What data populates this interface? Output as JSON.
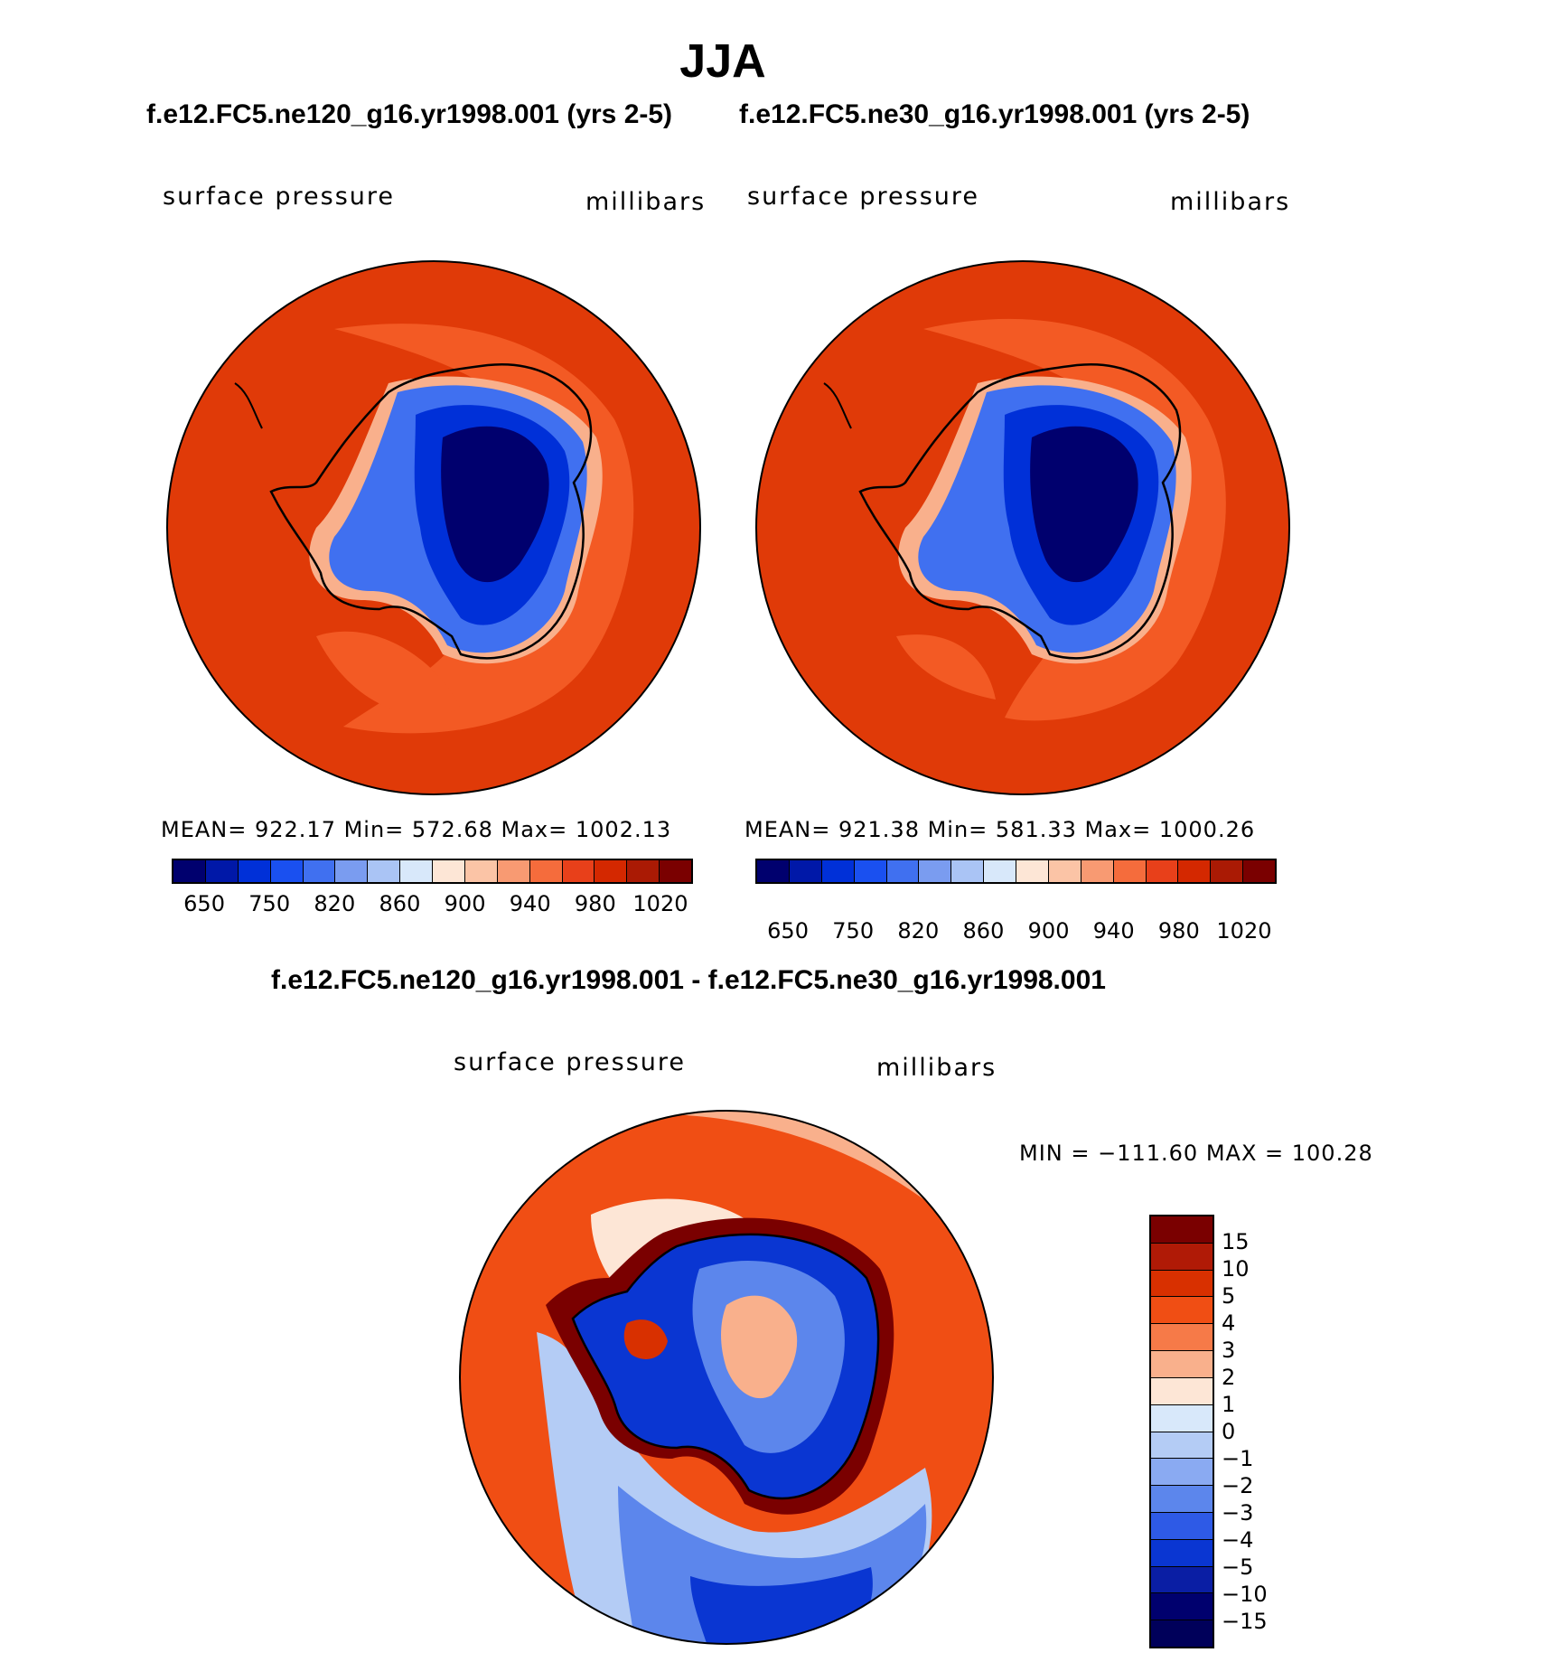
{
  "title": "JJA",
  "panels": [
    {
      "case": "f.e12.FC5.ne120_g16.yr1998.001 (yrs 2-5)",
      "variable": "surface pressure",
      "units": "millibars",
      "stats": "MEAN= 922.17   Min= 572.68   Max= 1002.13"
    },
    {
      "case": "f.e12.FC5.ne30_g16.yr1998.001 (yrs 2-5)",
      "variable": "surface pressure",
      "units": "millibars",
      "stats": "MEAN= 921.38   Min= 581.33   Max= 1000.26"
    }
  ],
  "abs_colorbar": {
    "colors": [
      "#00006e",
      "#0018a8",
      "#0030d8",
      "#1a50f0",
      "#4070f0",
      "#7a9cf0",
      "#aac4f5",
      "#d8e8fa",
      "#fde6d6",
      "#fbc4a6",
      "#f89a72",
      "#f56c3c",
      "#e8401a",
      "#d42800",
      "#aa1a04",
      "#7a0000"
    ],
    "labels": [
      "650",
      "750",
      "820",
      "860",
      "900",
      "940",
      "980",
      "1020"
    ]
  },
  "diff": {
    "title": "f.e12.FC5.ne120_g16.yr1998.001 - f.e12.FC5.ne30_g16.yr1998.001",
    "variable": "surface pressure",
    "units": "millibars",
    "minmax": "MIN = −111.60  MAX = 100.28"
  },
  "diff_colorbar": {
    "colors": [
      "#7a0000",
      "#b01a06",
      "#d83000",
      "#f04e14",
      "#f67a48",
      "#f9b08c",
      "#fde6d6",
      "#d8e8fa",
      "#b4ccf5",
      "#8aaaf2",
      "#5c86ec",
      "#2e5ae6",
      "#0a36d2",
      "#0a1ea4",
      "#00006e"
    ],
    "labels": [
      "15",
      "10",
      "5",
      "4",
      "3",
      "2",
      "1",
      "0",
      "−1",
      "−2",
      "−3",
      "−4",
      "−5",
      "−10",
      "−15"
    ]
  }
}
